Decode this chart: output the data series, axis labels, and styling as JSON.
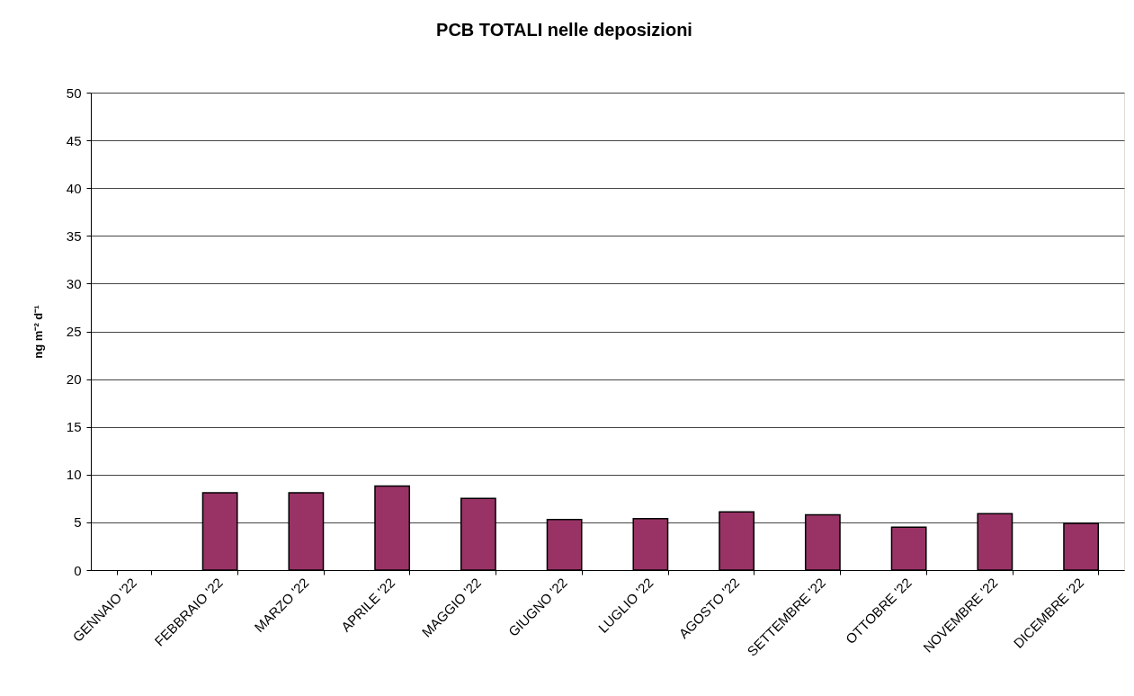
{
  "chart_data": {
    "type": "bar",
    "title": "PCB TOTALI nelle deposizioni",
    "ylabel": "ng m⁻² d⁻¹",
    "categories": [
      "GENNAIO '22",
      "FEBBRAIO '22",
      "MARZO '22",
      "APRILE '22",
      "MAGGIO '22",
      "GIUGNO '22",
      "LUGLIO '22",
      "AGOSTO '22",
      "SETTEMBRE '22",
      "OTTOBRE '22",
      "NOVEMBRE '22",
      "DICEMBRE '22"
    ],
    "values": [
      null,
      8.1,
      8.1,
      8.8,
      7.5,
      5.3,
      5.4,
      6.1,
      5.8,
      4.5,
      5.9,
      4.9
    ],
    "color": "#993366",
    "ylim": [
      0,
      50
    ],
    "yticks": [
      0,
      5,
      10,
      15,
      20,
      25,
      30,
      35,
      40,
      45,
      50
    ],
    "grid": "y"
  }
}
